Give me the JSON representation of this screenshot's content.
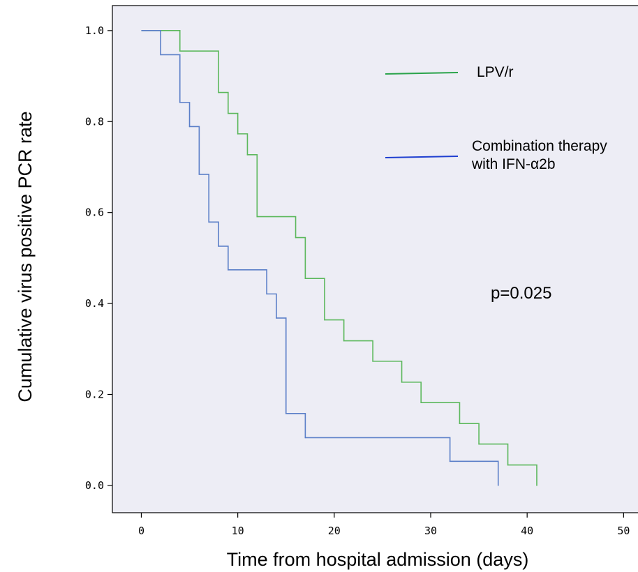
{
  "chart_data": {
    "type": "line",
    "subtype": "step (Kaplan-Meier)",
    "title": "",
    "xlabel": "Time from hospital admission (days)",
    "ylabel": "Cumulative virus positive PCR rate",
    "xlim": [
      -3,
      52
    ],
    "ylim": [
      -0.06,
      1.055
    ],
    "xticks": [
      0,
      10,
      20,
      30,
      40,
      50
    ],
    "xtick_labels": [
      "0",
      "10",
      "20",
      "30",
      "40",
      "50"
    ],
    "yticks": [
      0.0,
      0.2,
      0.4,
      0.6,
      0.8,
      1.0
    ],
    "ytick_labels": [
      "0.0",
      "0.2",
      "0.4",
      "0.6",
      "0.8",
      "1.0"
    ],
    "grid": false,
    "plot_background": "#ededf5",
    "legend_position": "top-right inside plot",
    "series": [
      {
        "name": "LPV/r",
        "color": "#5cb85c",
        "x": [
          0,
          4,
          8,
          9,
          10,
          11,
          12,
          16,
          17,
          19,
          21,
          24,
          27,
          29,
          33,
          35,
          38,
          41
        ],
        "y": [
          1.0,
          0.955,
          0.864,
          0.818,
          0.773,
          0.727,
          0.591,
          0.545,
          0.455,
          0.364,
          0.318,
          0.273,
          0.227,
          0.182,
          0.136,
          0.091,
          0.045,
          0.0
        ]
      },
      {
        "name": "Combination therapy with IFN-α2b",
        "name_lines": [
          "Combination therapy",
          "with IFN-α2b"
        ],
        "color": "#5b7fc8",
        "x": [
          0,
          2,
          4,
          5,
          6,
          7,
          8,
          9,
          13,
          14,
          15,
          17,
          32,
          37
        ],
        "y": [
          1.0,
          0.947,
          0.842,
          0.789,
          0.684,
          0.579,
          0.526,
          0.474,
          0.421,
          0.368,
          0.158,
          0.105,
          0.053,
          0.0
        ]
      }
    ],
    "legend_colors": [
      "#2aa34a",
      "#1f3fd0"
    ],
    "annotations": [
      {
        "text": "p=0.025"
      }
    ]
  }
}
